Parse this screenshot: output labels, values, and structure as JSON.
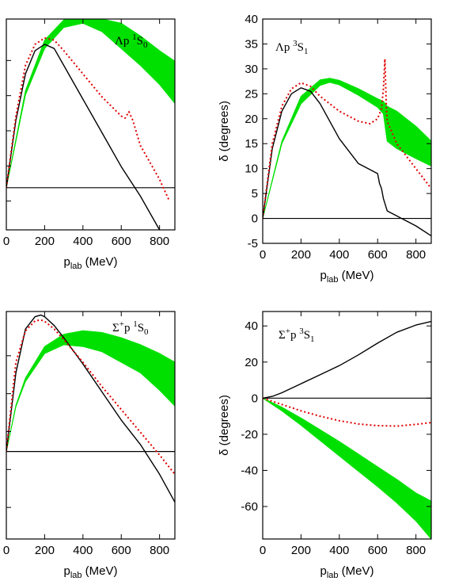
{
  "chart_data": [
    {
      "type": "line",
      "panel": "top-left",
      "title": "Λp ¹S₀",
      "label_parts": [
        "Λp ",
        "1",
        "S",
        "0"
      ],
      "xlabel": "p_lab (MeV)",
      "xlabel_parts": [
        "p",
        "lab",
        " (MeV)"
      ],
      "ylabel": "",
      "xlim": [
        0,
        880
      ],
      "ylim": [
        -5,
        45
      ],
      "xticks": [
        0,
        200,
        400,
        600,
        800
      ],
      "yticks": [],
      "zero_line": 5,
      "band": {
        "color": "#00e000",
        "x": [
          0,
          100,
          200,
          300,
          400,
          500,
          600,
          700,
          800,
          880
        ],
        "lower": [
          5,
          27,
          38,
          43,
          44,
          42,
          38,
          34,
          29.5,
          25
        ],
        "upper": [
          5,
          28,
          40,
          44.8,
          45,
          45,
          44,
          41,
          37.5,
          35
        ]
      },
      "series": [
        {
          "color": "#000000",
          "dash": "none",
          "x": [
            0,
            50,
            100,
            150,
            200,
            250,
            300,
            400,
            500,
            600,
            700,
            800,
            880
          ],
          "y": [
            5,
            21,
            32,
            37.5,
            39,
            38,
            34,
            26,
            18,
            10,
            3,
            -5,
            -11
          ]
        },
        {
          "color": "#e00000",
          "dash": "dot",
          "x": [
            0,
            50,
            100,
            150,
            200,
            250,
            300,
            400,
            500,
            600,
            620,
            640,
            660,
            700,
            800,
            850
          ],
          "y": [
            5,
            22,
            34,
            39,
            40.5,
            40,
            37.5,
            32,
            26.5,
            22,
            21.5,
            23,
            21,
            15,
            7,
            2
          ]
        }
      ]
    },
    {
      "type": "line",
      "panel": "top-right",
      "title": "Λp ³S₁",
      "label_parts": [
        "Λp ",
        "3",
        "S",
        "1"
      ],
      "xlabel": "p_lab (MeV)",
      "xlabel_parts": [
        "p",
        "lab",
        " (MeV)"
      ],
      "ylabel": "δ (degrees)",
      "xlim": [
        0,
        880
      ],
      "ylim": [
        -5,
        40
      ],
      "xticks": [
        0,
        200,
        400,
        600,
        800
      ],
      "yticks": [
        -5,
        0,
        5,
        10,
        15,
        20,
        25,
        30,
        35,
        40
      ],
      "zero_line": 0,
      "band": {
        "color": "#00e000",
        "x": [
          0,
          100,
          200,
          300,
          350,
          400,
          500,
          600,
          630,
          650,
          700,
          800,
          880
        ],
        "lower": [
          0,
          15,
          23,
          26.7,
          27.3,
          26.8,
          24.7,
          22.3,
          21,
          15.5,
          14,
          12,
          10.5
        ],
        "upper": [
          0,
          15.5,
          24.5,
          27.8,
          28.1,
          27.7,
          26,
          24,
          23.5,
          22.5,
          21.5,
          18.5,
          15.5
        ]
      },
      "series": [
        {
          "color": "#000000",
          "dash": "none",
          "x": [
            0,
            50,
            100,
            150,
            200,
            250,
            300,
            400,
            500,
            600,
            610,
            620,
            630,
            650,
            700,
            800,
            880
          ],
          "y": [
            0,
            14,
            21.5,
            25,
            26.2,
            25.5,
            23,
            16,
            11,
            9,
            7,
            6,
            4,
            1.5,
            0.5,
            -1.5,
            -3.5
          ]
        },
        {
          "color": "#e00000",
          "dash": "dot",
          "x": [
            0,
            50,
            100,
            150,
            200,
            250,
            300,
            400,
            500,
            560,
            600,
            620,
            630,
            638,
            645,
            650,
            700,
            800,
            880
          ],
          "y": [
            0,
            15,
            22.5,
            26,
            27.2,
            26.5,
            24.5,
            21.5,
            19.5,
            19,
            20,
            22,
            26,
            32,
            23,
            19.5,
            15,
            10,
            6
          ]
        }
      ]
    },
    {
      "type": "line",
      "panel": "bottom-left",
      "title": "Σ⁺p ¹S₀",
      "label_parts": [
        "Σ",
        "+",
        "p ",
        "1",
        "S",
        "0"
      ],
      "xlabel": "p_lab (MeV)",
      "xlabel_parts": [
        "p",
        "lab",
        " (MeV)"
      ],
      "ylabel": "",
      "xlim": [
        0,
        880
      ],
      "ylim": [
        -25,
        40
      ],
      "xticks": [
        0,
        200,
        400,
        600,
        800
      ],
      "yticks": [],
      "zero_line": 0,
      "band": {
        "color": "#00e000",
        "x": [
          0,
          50,
          100,
          200,
          300,
          400,
          500,
          600,
          700,
          800,
          880
        ],
        "lower": [
          0,
          12.8,
          20,
          28,
          30.5,
          30,
          28.5,
          25.5,
          22.5,
          17.5,
          13
        ],
        "upper": [
          0,
          13.2,
          21,
          30,
          33.5,
          34.5,
          34,
          32.5,
          30.5,
          28,
          25.5
        ]
      },
      "series": [
        {
          "color": "#000000",
          "dash": "none",
          "x": [
            0,
            50,
            100,
            150,
            180,
            200,
            250,
            300,
            400,
            500,
            600,
            700,
            800,
            880
          ],
          "y": [
            0,
            22.5,
            35,
            38.5,
            39,
            38.5,
            36,
            32.5,
            25,
            17,
            9,
            2,
            -6.5,
            -14.5
          ]
        },
        {
          "color": "#e00000",
          "dash": "dot",
          "x": [
            0,
            50,
            100,
            150,
            180,
            200,
            250,
            300,
            400,
            500,
            600,
            700,
            800,
            880
          ],
          "y": [
            0,
            25.5,
            34.5,
            37.3,
            37.6,
            37.2,
            35,
            32,
            25.5,
            18.5,
            12,
            5.5,
            -1,
            -6.5
          ]
        }
      ]
    },
    {
      "type": "line",
      "panel": "bottom-right",
      "title": "Σ⁺p ³S₁",
      "label_parts": [
        "Σ",
        "+",
        "p ",
        "3",
        "S",
        "1"
      ],
      "xlabel": "p_lab (MeV)",
      "xlabel_parts": [
        "p",
        "lab",
        " (MeV)"
      ],
      "ylabel": "δ (degrees)",
      "xlim": [
        0,
        880
      ],
      "ylim": [
        -78,
        48
      ],
      "xticks": [
        0,
        200,
        400,
        600,
        800
      ],
      "yticks": [
        -60,
        -40,
        -20,
        0,
        20,
        40
      ],
      "zero_line": 0,
      "band": {
        "color": "#00e000",
        "x": [
          0,
          100,
          200,
          300,
          400,
          500,
          600,
          700,
          800,
          880
        ],
        "lower": [
          0,
          -7,
          -15,
          -23.5,
          -32,
          -40.5,
          -49,
          -58,
          -68,
          -78
        ],
        "upper": [
          0,
          -5,
          -11,
          -17.5,
          -24,
          -31,
          -38,
          -45,
          -52.5,
          -57
        ]
      },
      "series": [
        {
          "color": "#000000",
          "dash": "none",
          "x": [
            0,
            50,
            100,
            200,
            300,
            400,
            500,
            600,
            700,
            800,
            880
          ],
          "y": [
            0,
            1,
            3,
            8,
            13,
            18,
            24,
            30.5,
            36.5,
            40.5,
            42.5
          ]
        },
        {
          "color": "#e00000",
          "dash": "dot",
          "x": [
            0,
            100,
            200,
            300,
            400,
            500,
            600,
            700,
            800,
            880
          ],
          "y": [
            0,
            -3.5,
            -7,
            -10,
            -12.5,
            -14.3,
            -15.2,
            -15.5,
            -14.5,
            -13.5
          ]
        }
      ]
    }
  ]
}
